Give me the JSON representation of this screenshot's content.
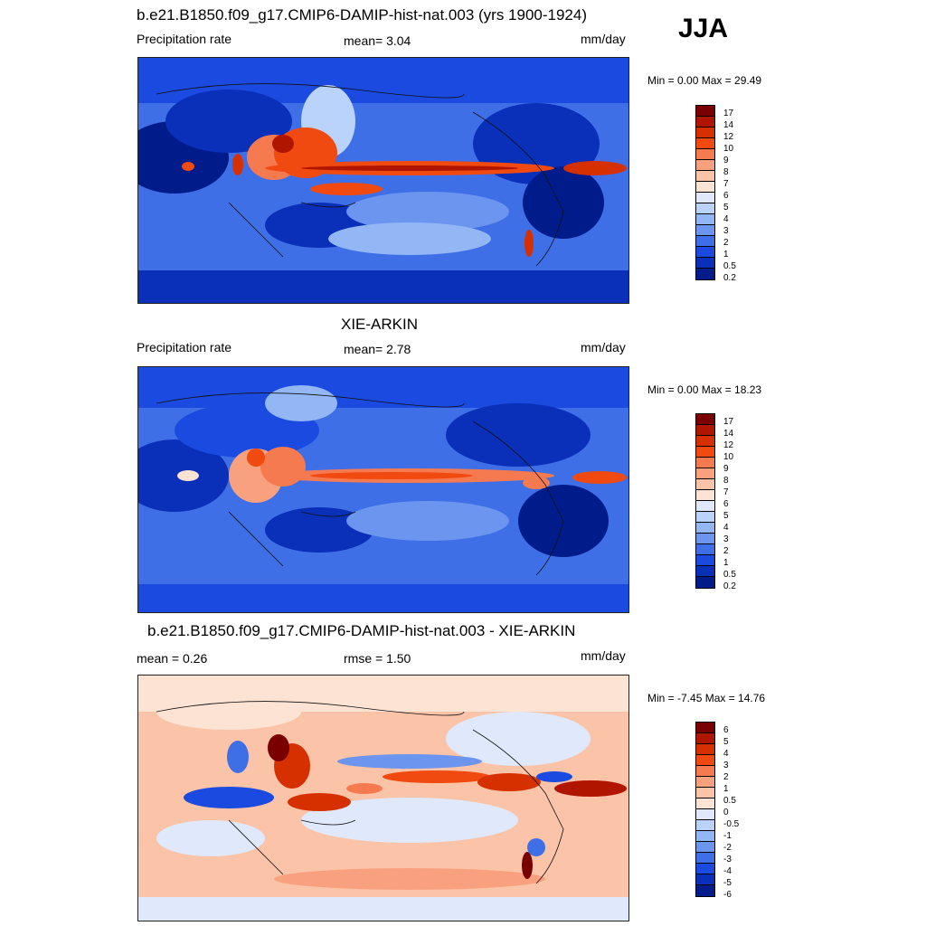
{
  "season": "JJA",
  "panels": [
    {
      "title": "b.e21.B1850.f09_g17.CMIP6-DAMIP-hist-nat.003 (yrs 1900-1924)",
      "left_label": "Precipitation rate",
      "center_label": "mean=   3.04",
      "units": "mm/day",
      "minmax": "Min =   0.00 Max =  29.49",
      "colorbar_labels": [
        "17",
        "14",
        "12",
        "10",
        "9",
        "8",
        "7",
        "6",
        "5",
        "4",
        "3",
        "2",
        "1",
        "0.5",
        "0.2"
      ]
    },
    {
      "title": "XIE-ARKIN",
      "left_label": "Precipitation rate",
      "center_label": "mean=   2.78",
      "units": "mm/day",
      "minmax": "Min =   0.00 Max =  18.23",
      "colorbar_labels": [
        "17",
        "14",
        "12",
        "10",
        "9",
        "8",
        "7",
        "6",
        "5",
        "4",
        "3",
        "2",
        "1",
        "0.5",
        "0.2"
      ]
    },
    {
      "title": "b.e21.B1850.f09_g17.CMIP6-DAMIP-hist-nat.003 - XIE-ARKIN",
      "left_label": "mean =   0.26",
      "center_label": "rmse =   1.50",
      "units": "mm/day",
      "minmax": "Min = -7.45 Max =  14.76",
      "colorbar_labels": [
        "6",
        "5",
        "4",
        "3",
        "2",
        "1",
        "0.5",
        "0",
        "-0.5",
        "-1",
        "-2",
        "-3",
        "-4",
        "-5",
        "-6"
      ]
    }
  ],
  "colors": {
    "precip_scale": [
      "#7a0000",
      "#b01500",
      "#d73000",
      "#f04a10",
      "#f67a4f",
      "#f9a17f",
      "#fbc4a8",
      "#fde3d4",
      "#dfe9fb",
      "#bad3fb",
      "#93b6f5",
      "#6b95ee",
      "#3f6fe6",
      "#1a4ae0",
      "#0a2fb8",
      "#001b8a"
    ],
    "diff_scale": [
      "#7a0000",
      "#b01500",
      "#d73000",
      "#f04a10",
      "#f67a4f",
      "#f9a17f",
      "#fbc4a8",
      "#fde3d4",
      "#dfe9fb",
      "#bad3fb",
      "#93b6f5",
      "#6b95ee",
      "#3f6fe6",
      "#1a4ae0",
      "#0a2fb8",
      "#001b8a"
    ]
  }
}
